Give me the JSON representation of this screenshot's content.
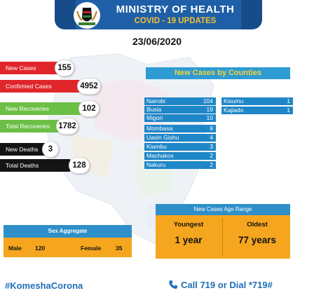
{
  "header": {
    "title": "MINISTRY OF HEALTH",
    "subtitle": "COVID - 19 UPDATES",
    "emblem_icon": "kenya-coat-of-arms-icon",
    "brand_color": "#1f5fa8",
    "accent_color": "#f2c230"
  },
  "date": "23/06/2020",
  "stats": [
    {
      "label": "New Cases",
      "value": "155",
      "color": "#e0262b"
    },
    {
      "label": "Confirmed Cases",
      "value": "4952",
      "color": "#e0262b"
    },
    {
      "label": "New Recoveries",
      "value": "102",
      "color": "#6cbf45"
    },
    {
      "label": "Total Recoveries",
      "value": "1782",
      "color": "#6cbf45"
    },
    {
      "label": "New Deaths",
      "value": "3",
      "color": "#141414"
    },
    {
      "label": "Total Deaths",
      "value": "128",
      "color": "#141414"
    }
  ],
  "counties": {
    "title": "New Cases by Counties",
    "left": [
      {
        "name": "Nairobi",
        "value": "104"
      },
      {
        "name": "Busia",
        "value": "19"
      },
      {
        "name": "Migori",
        "value": "10"
      },
      {
        "name": "Mombasa",
        "value": "9"
      },
      {
        "name": "Uasin Gishu",
        "value": "4"
      },
      {
        "name": "Kiambu",
        "value": "3"
      },
      {
        "name": "Machakos",
        "value": "2"
      },
      {
        "name": "Nakuru",
        "value": "2"
      }
    ],
    "right": [
      {
        "name": "Kisumu",
        "value": "1"
      },
      {
        "name": "Kajiado",
        "value": "1"
      }
    ]
  },
  "age_range": {
    "title": "New Cases Age Range",
    "youngest_label": "Youngest",
    "youngest_value": "1 year",
    "oldest_label": "Oldest",
    "oldest_value": "77 years"
  },
  "sex_aggregate": {
    "title": "Sex Aggregate",
    "male_label": "Male",
    "male_value": "120",
    "female_label": "Female",
    "female_value": "35"
  },
  "footer": {
    "hashtag": "#KomeshaCorona",
    "call_text": "Call  719 or Dial *719#",
    "phone_icon": "phone-icon"
  }
}
